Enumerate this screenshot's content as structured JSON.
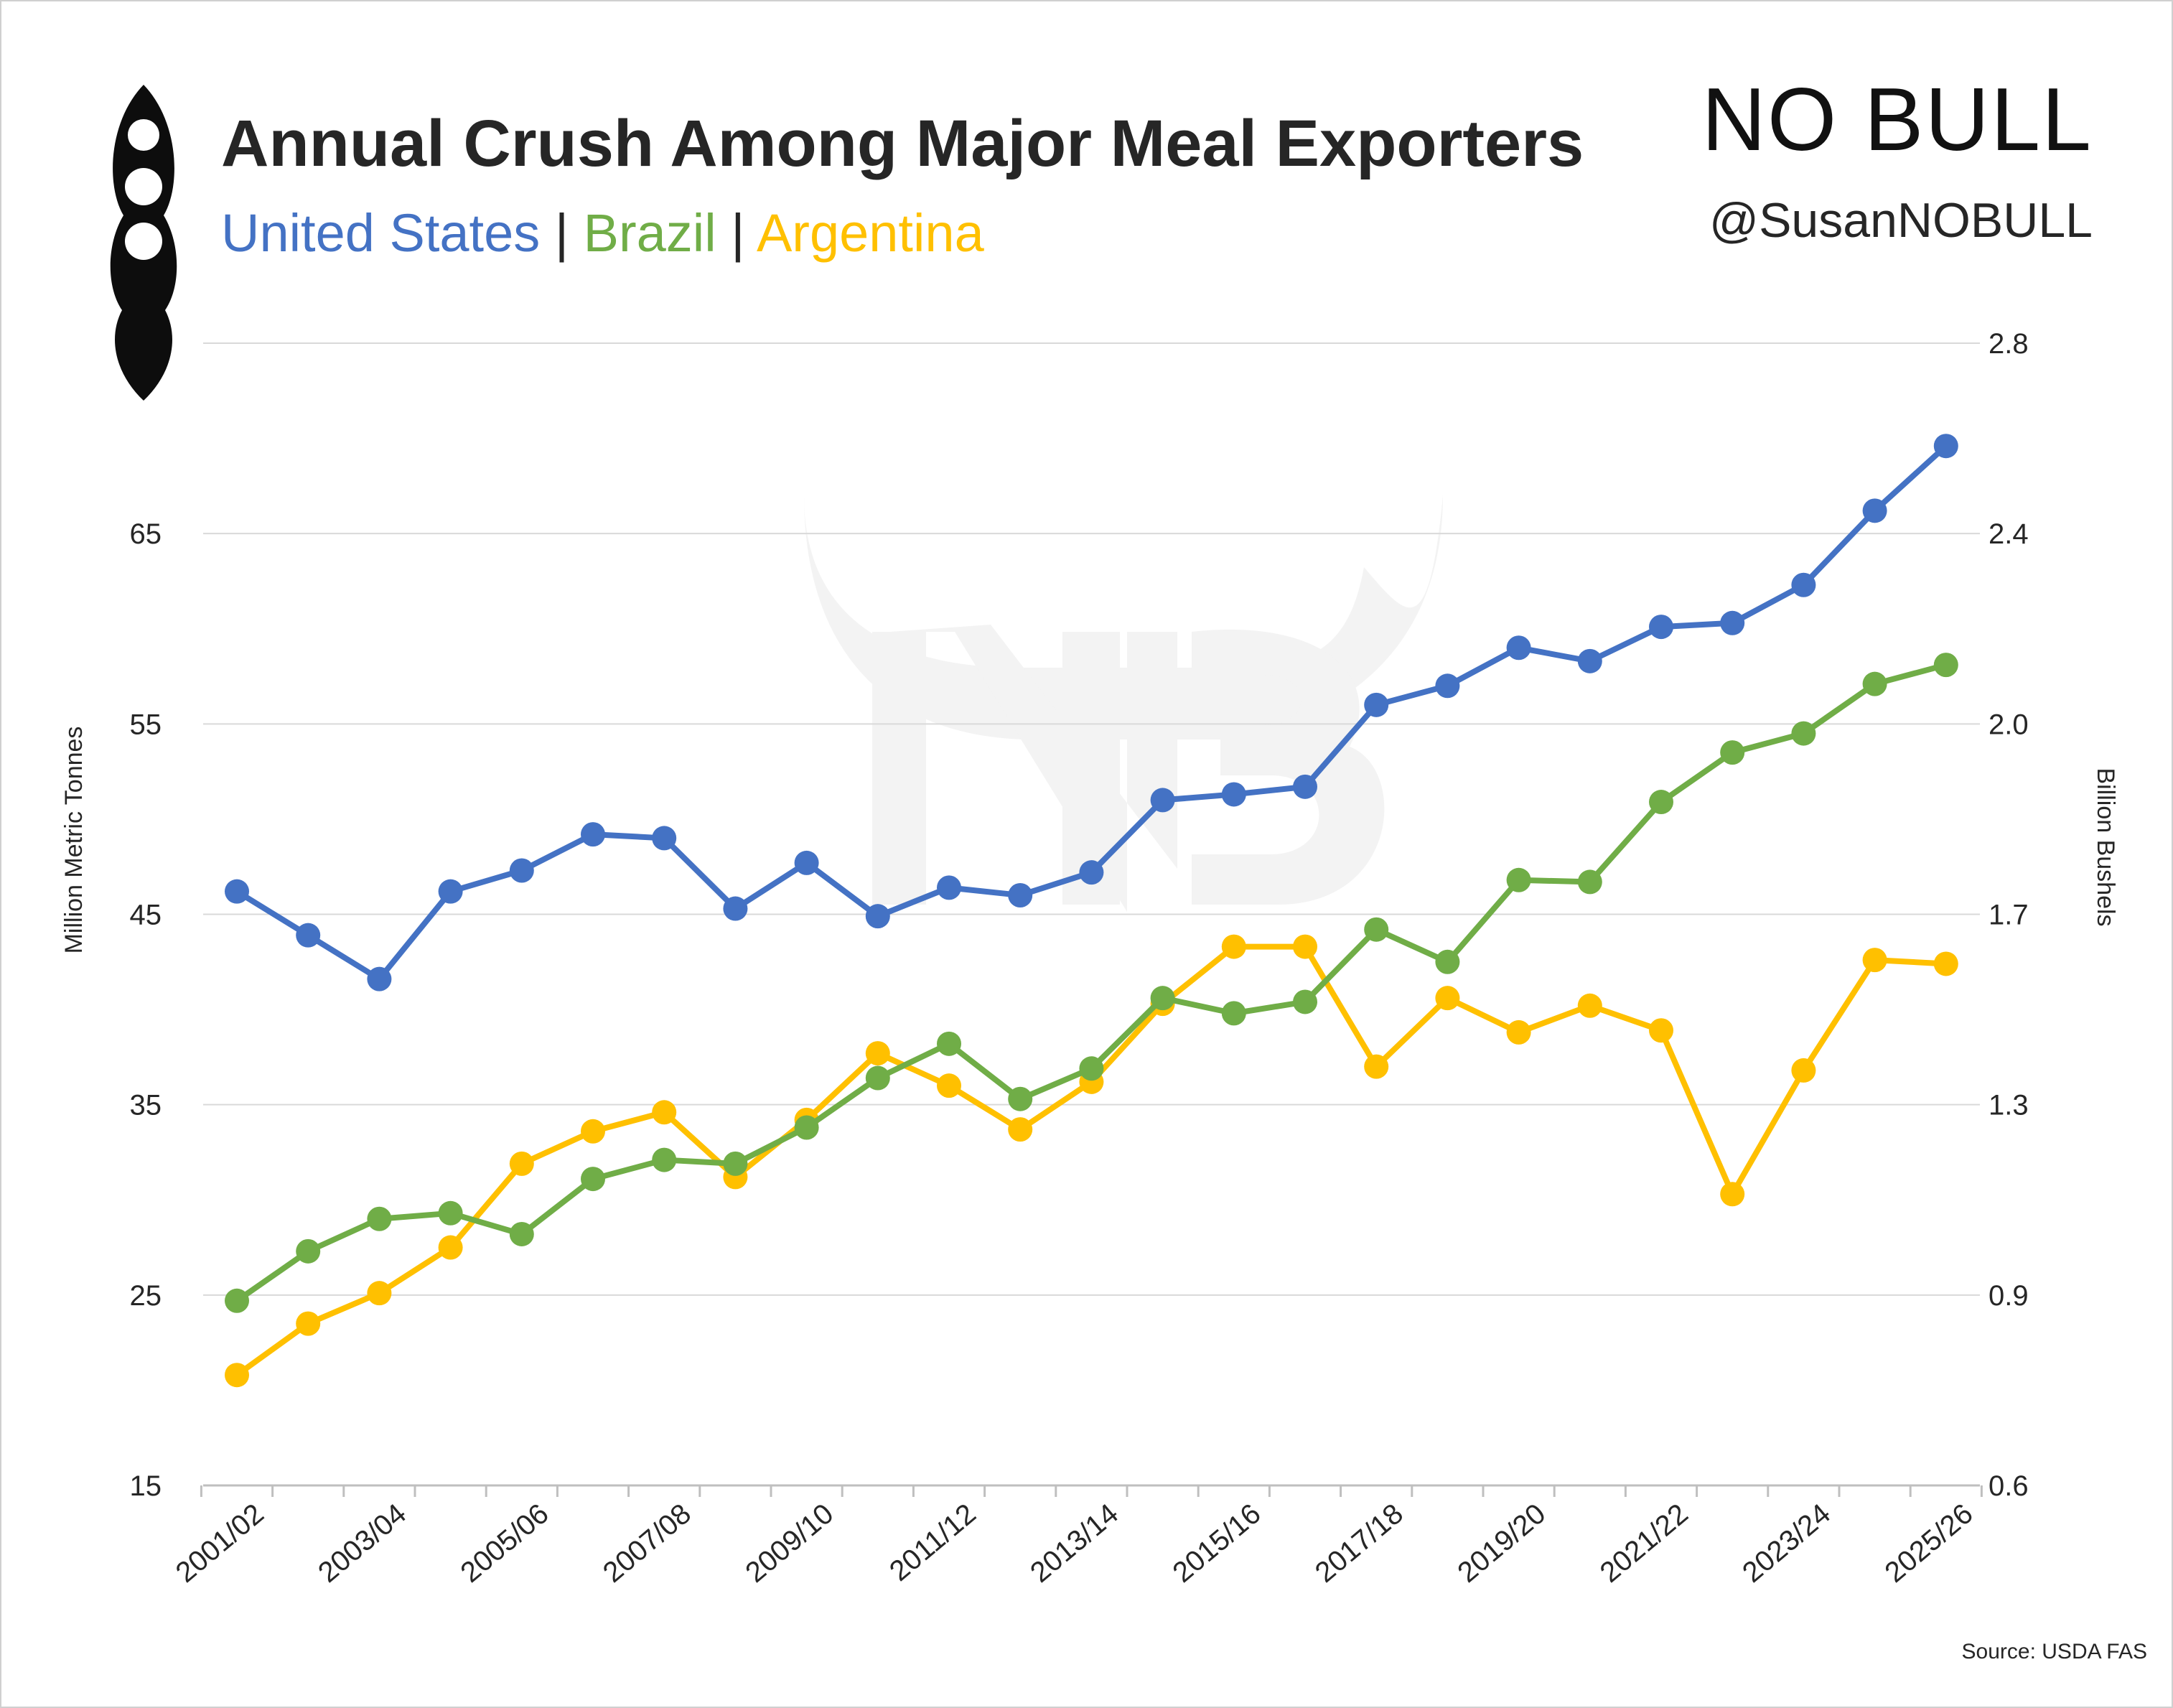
{
  "header": {
    "title": "Annual Crush Among Major Meal Exporters",
    "subtitle_sep": "|",
    "brand": "NO BULL",
    "handle": "@SusanNOBULL",
    "source": "Source: USDA FAS",
    "watermark_icon": "bull-horns-nb-watermark",
    "logo_icon": "soybean-pod-icon"
  },
  "colors": {
    "united_states": "#4472C4",
    "brazil": "#70AD47",
    "argentina": "#FFC000",
    "gridline": "#d9d9d9",
    "text": "#262626"
  },
  "chart_data": {
    "type": "line",
    "title": "Annual Crush Among Major Meal Exporters",
    "xlabel": "",
    "ylabel": "Million Metric Tonnes",
    "y2label": "Billion Bushels",
    "ylim": [
      15,
      75
    ],
    "yticks": [
      15,
      25,
      35,
      45,
      55,
      65,
      75
    ],
    "y2ticks": [
      "0.6",
      "0.9",
      "1.3",
      "1.7",
      "2.0",
      "2.4",
      "2.8"
    ],
    "grid": true,
    "x": [
      "2001/02",
      "2002/03",
      "2003/04",
      "2004/05",
      "2005/06",
      "2006/07",
      "2007/08",
      "2008/09",
      "2009/10",
      "2010/11",
      "2011/12",
      "2012/13",
      "2013/14",
      "2014/15",
      "2015/16",
      "2016/17",
      "2017/18",
      "2018/19",
      "2019/20",
      "2020/21",
      "2021/22",
      "2022/23",
      "2023/24",
      "2024/25",
      "2025/26"
    ],
    "xtick_labels": [
      "2001/02",
      "2003/04",
      "2005/06",
      "2007/08",
      "2009/10",
      "2011/12",
      "2013/14",
      "2015/16",
      "2017/18",
      "2019/20",
      "2021/22",
      "2023/24",
      "2025/26"
    ],
    "series": [
      {
        "name": "United States",
        "color": "#4472C4",
        "values": [
          46.2,
          43.9,
          41.6,
          46.2,
          47.3,
          49.2,
          49.0,
          45.3,
          47.7,
          44.9,
          46.4,
          46.0,
          47.2,
          51.0,
          51.3,
          51.7,
          56.0,
          57.0,
          59.0,
          58.3,
          60.1,
          60.3,
          62.3,
          66.2,
          69.6
        ]
      },
      {
        "name": "Brazil",
        "color": "#70AD47",
        "values": [
          24.7,
          27.3,
          29.0,
          29.3,
          28.2,
          31.1,
          32.1,
          31.9,
          33.8,
          36.4,
          38.2,
          35.3,
          36.9,
          40.6,
          39.8,
          40.4,
          44.2,
          42.5,
          46.8,
          46.7,
          50.9,
          53.5,
          54.5,
          57.1,
          58.1
        ]
      },
      {
        "name": "Argentina",
        "color": "#FFC000",
        "values": [
          20.8,
          23.5,
          25.1,
          27.5,
          31.9,
          33.6,
          34.6,
          31.2,
          34.2,
          37.7,
          36.0,
          33.7,
          36.2,
          40.3,
          43.3,
          43.3,
          37.0,
          40.6,
          38.8,
          40.2,
          38.9,
          30.3,
          36.8,
          42.6,
          42.4
        ]
      }
    ]
  }
}
